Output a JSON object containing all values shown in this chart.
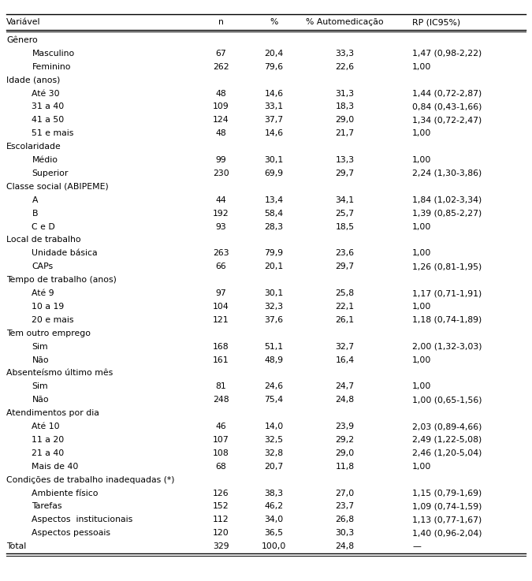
{
  "columns": [
    "Variável",
    "n",
    "%",
    "% Automedicação",
    "RP (IC95%)"
  ],
  "rows": [
    {
      "label": "Gênero",
      "indent": 0,
      "n": "",
      "pct": "",
      "auto": "",
      "rp": "",
      "category": true
    },
    {
      "label": "Masculino",
      "indent": 1,
      "n": "67",
      "pct": "20,4",
      "auto": "33,3",
      "rp": "1,47 (0,98-2,22)",
      "category": false
    },
    {
      "label": "Feminino",
      "indent": 1,
      "n": "262",
      "pct": "79,6",
      "auto": "22,6",
      "rp": "1,00",
      "category": false
    },
    {
      "label": "Idade (anos)",
      "indent": 0,
      "n": "",
      "pct": "",
      "auto": "",
      "rp": "",
      "category": true
    },
    {
      "label": "Até 30",
      "indent": 1,
      "n": "48",
      "pct": "14,6",
      "auto": "31,3",
      "rp": "1,44 (0,72-2,87)",
      "category": false
    },
    {
      "label": "31 a 40",
      "indent": 1,
      "n": "109",
      "pct": "33,1",
      "auto": "18,3",
      "rp": "0,84 (0,43-1,66)",
      "category": false
    },
    {
      "label": "41 a 50",
      "indent": 1,
      "n": "124",
      "pct": "37,7",
      "auto": "29,0",
      "rp": "1,34 (0,72-2,47)",
      "category": false
    },
    {
      "label": "51 e mais",
      "indent": 1,
      "n": "48",
      "pct": "14,6",
      "auto": "21,7",
      "rp": "1,00",
      "category": false
    },
    {
      "label": "Escolaridade",
      "indent": 0,
      "n": "",
      "pct": "",
      "auto": "",
      "rp": "",
      "category": true
    },
    {
      "label": "Médio",
      "indent": 1,
      "n": "99",
      "pct": "30,1",
      "auto": "13,3",
      "rp": "1,00",
      "category": false
    },
    {
      "label": "Superior",
      "indent": 1,
      "n": "230",
      "pct": "69,9",
      "auto": "29,7",
      "rp": "2,24 (1,30-3,86)",
      "category": false
    },
    {
      "label": "Classe social (ABIPEME)",
      "indent": 0,
      "n": "",
      "pct": "",
      "auto": "",
      "rp": "",
      "category": true
    },
    {
      "label": "A",
      "indent": 1,
      "n": "44",
      "pct": "13,4",
      "auto": "34,1",
      "rp": "1,84 (1,02-3,34)",
      "category": false
    },
    {
      "label": "B",
      "indent": 1,
      "n": "192",
      "pct": "58,4",
      "auto": "25,7",
      "rp": "1,39 (0,85-2,27)",
      "category": false
    },
    {
      "label": "C e D",
      "indent": 1,
      "n": "93",
      "pct": "28,3",
      "auto": "18,5",
      "rp": "1,00",
      "category": false
    },
    {
      "label": "Local de trabalho",
      "indent": 0,
      "n": "",
      "pct": "",
      "auto": "",
      "rp": "",
      "category": true
    },
    {
      "label": "Unidade básica",
      "indent": 1,
      "n": "263",
      "pct": "79,9",
      "auto": "23,6",
      "rp": "1,00",
      "category": false
    },
    {
      "label": "CAPs",
      "indent": 1,
      "n": "66",
      "pct": "20,1",
      "auto": "29,7",
      "rp": "1,26 (0,81-1,95)",
      "category": false
    },
    {
      "label": "Tempo de trabalho (anos)",
      "indent": 0,
      "n": "",
      "pct": "",
      "auto": "",
      "rp": "",
      "category": true
    },
    {
      "label": "Até 9",
      "indent": 1,
      "n": "97",
      "pct": "30,1",
      "auto": "25,8",
      "rp": "1,17 (0,71-1,91)",
      "category": false
    },
    {
      "label": "10 a 19",
      "indent": 1,
      "n": "104",
      "pct": "32,3",
      "auto": "22,1",
      "rp": "1,00",
      "category": false
    },
    {
      "label": "20 e mais",
      "indent": 1,
      "n": "121",
      "pct": "37,6",
      "auto": "26,1",
      "rp": "1,18 (0,74-1,89)",
      "category": false
    },
    {
      "label": "Tem outro emprego",
      "indent": 0,
      "n": "",
      "pct": "",
      "auto": "",
      "rp": "",
      "category": true
    },
    {
      "label": "Sim",
      "indent": 1,
      "n": "168",
      "pct": "51,1",
      "auto": "32,7",
      "rp": "2,00 (1,32-3,03)",
      "category": false
    },
    {
      "label": "Não",
      "indent": 1,
      "n": "161",
      "pct": "48,9",
      "auto": "16,4",
      "rp": "1,00",
      "category": false
    },
    {
      "label": "Absenteísmo último mês",
      "indent": 0,
      "n": "",
      "pct": "",
      "auto": "",
      "rp": "",
      "category": true
    },
    {
      "label": "Sim",
      "indent": 1,
      "n": "81",
      "pct": "24,6",
      "auto": "24,7",
      "rp": "1,00",
      "category": false
    },
    {
      "label": "Não",
      "indent": 1,
      "n": "248",
      "pct": "75,4",
      "auto": "24,8",
      "rp": "1,00 (0,65-1,56)",
      "category": false
    },
    {
      "label": "Atendimentos por dia",
      "indent": 0,
      "n": "",
      "pct": "",
      "auto": "",
      "rp": "",
      "category": true
    },
    {
      "label": "Até 10",
      "indent": 1,
      "n": "46",
      "pct": "14,0",
      "auto": "23,9",
      "rp": "2,03 (0,89-4,66)",
      "category": false
    },
    {
      "label": "11 a 20",
      "indent": 1,
      "n": "107",
      "pct": "32,5",
      "auto": "29,2",
      "rp": "2,49 (1,22-5,08)",
      "category": false
    },
    {
      "label": "21 a 40",
      "indent": 1,
      "n": "108",
      "pct": "32,8",
      "auto": "29,0",
      "rp": "2,46 (1,20-5,04)",
      "category": false
    },
    {
      "label": "Mais de 40",
      "indent": 1,
      "n": "68",
      "pct": "20,7",
      "auto": "11,8",
      "rp": "1,00",
      "category": false
    },
    {
      "label": "Condições de trabalho inadequadas (*)",
      "indent": 0,
      "n": "",
      "pct": "",
      "auto": "",
      "rp": "",
      "category": true
    },
    {
      "label": "Ambiente físico",
      "indent": 1,
      "n": "126",
      "pct": "38,3",
      "auto": "27,0",
      "rp": "1,15 (0,79-1,69)",
      "category": false
    },
    {
      "label": "Tarefas",
      "indent": 1,
      "n": "152",
      "pct": "46,2",
      "auto": "23,7",
      "rp": "1,09 (0,74-1,59)",
      "category": false
    },
    {
      "label": "Aspectos  institucionais",
      "indent": 1,
      "n": "112",
      "pct": "34,0",
      "auto": "26,8",
      "rp": "1,13 (0,77-1,67)",
      "category": false
    },
    {
      "label": "Aspectos pessoais",
      "indent": 1,
      "n": "120",
      "pct": "36,5",
      "auto": "30,3",
      "rp": "1,40 (0,96-2,04)",
      "category": false
    },
    {
      "label": "Total",
      "indent": 0,
      "n": "329",
      "pct": "100,0",
      "auto": "24,8",
      "rp": "—",
      "category": false,
      "is_total": true
    }
  ],
  "col_var": 0.012,
  "col_n": 0.415,
  "col_pct": 0.515,
  "col_auto": 0.648,
  "col_rp": 0.775,
  "indent_size": 0.048,
  "font_size": 7.8,
  "bg_color": "white",
  "text_color": "black",
  "line_color": "black"
}
